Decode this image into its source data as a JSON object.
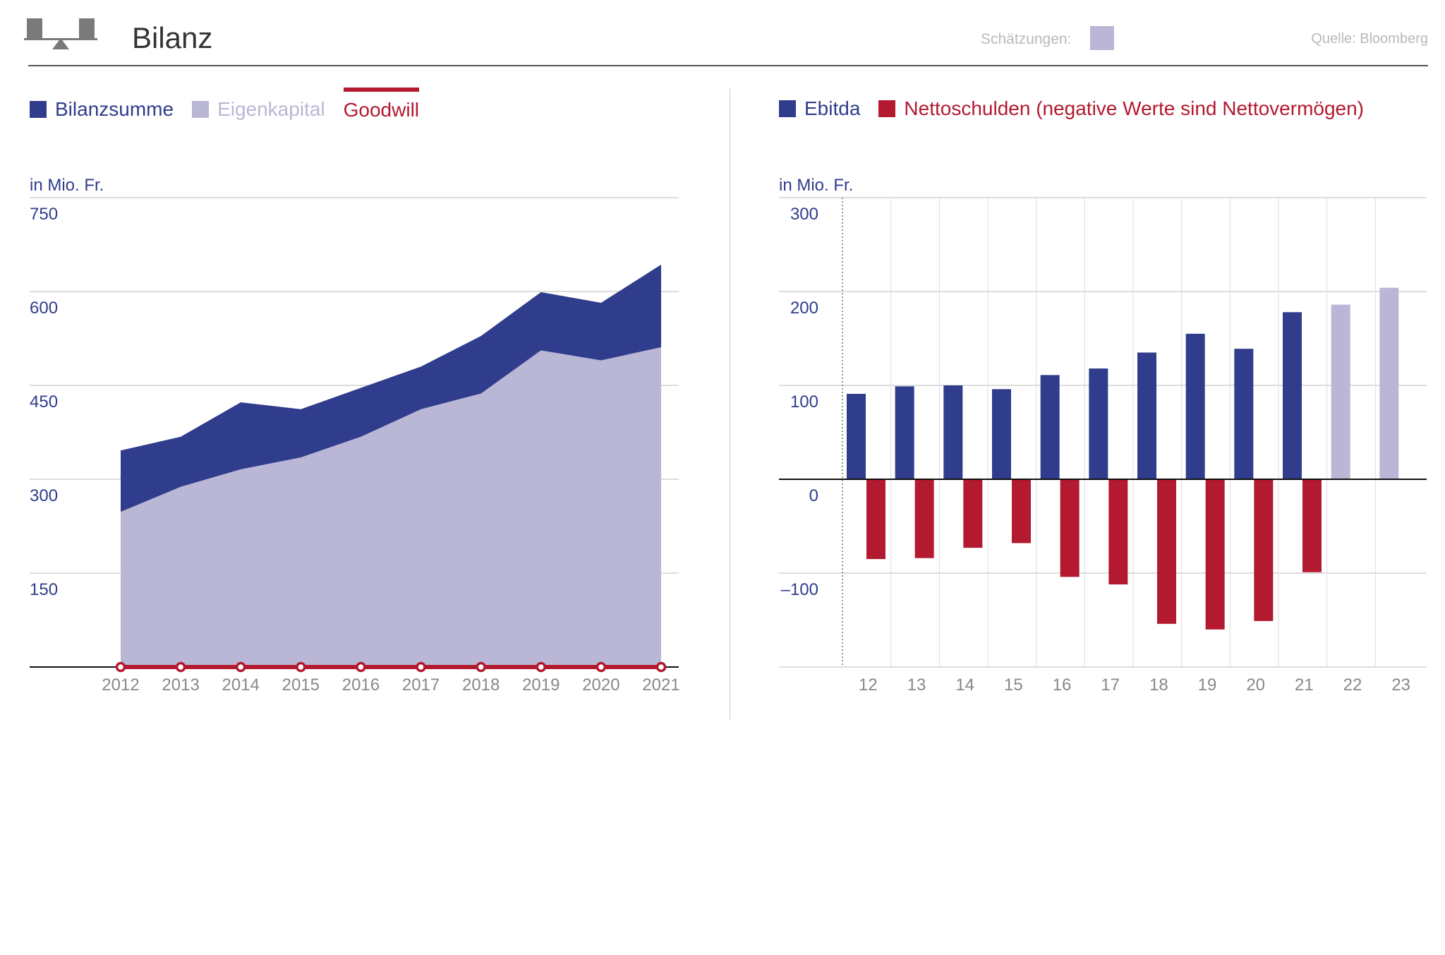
{
  "header": {
    "title": "Bilanz",
    "estimates_label": "Schätzungen:",
    "source": "Quelle: Bloomberg"
  },
  "colors": {
    "navy": "#303d8c",
    "lavender": "#b9b7d5",
    "red": "#b3192f",
    "axis_text": "#303d8c",
    "tick_text": "#888888"
  },
  "left_legend": [
    {
      "label": "Bilanzsumme",
      "color": "#303d8c",
      "kind": "swatch",
      "text_color": "#303d8c"
    },
    {
      "label": "Eigenkapital",
      "color": "#b9b7d5",
      "kind": "swatch",
      "text_color": "#b9b7d5"
    },
    {
      "label": "Goodwill",
      "color": "#b3192f",
      "kind": "line",
      "text_color": "#b3192f"
    }
  ],
  "right_legend": [
    {
      "label": "Ebitda",
      "color": "#303d8c",
      "kind": "swatch",
      "text_color": "#303d8c"
    },
    {
      "label": "Nettoschulden (negative Werte sind Nettovermögen)",
      "color": "#b3192f",
      "kind": "swatch",
      "text_color": "#b3192f"
    }
  ],
  "chart_data": [
    {
      "type": "area",
      "unit_label": "in Mio. Fr.",
      "x": [
        "2012",
        "2013",
        "2014",
        "2015",
        "2016",
        "2017",
        "2018",
        "2019",
        "2020",
        "2021"
      ],
      "yticks": [
        "750",
        "600",
        "450",
        "300",
        "150"
      ],
      "ylim": [
        0,
        750
      ],
      "grid": true,
      "series": [
        {
          "name": "Bilanzsumme",
          "values": [
            346,
            368,
            423,
            412,
            446,
            480,
            529,
            599,
            582,
            643
          ]
        },
        {
          "name": "Eigenkapital",
          "values": [
            248,
            288,
            316,
            335,
            368,
            412,
            437,
            506,
            490,
            511
          ]
        },
        {
          "name": "Goodwill",
          "values": [
            0,
            0,
            0,
            0,
            0,
            0,
            0,
            0,
            0,
            0
          ]
        }
      ]
    },
    {
      "type": "bar",
      "unit_label": "in Mio. Fr.",
      "categories": [
        "12",
        "13",
        "14",
        "15",
        "16",
        "17",
        "18",
        "19",
        "20",
        "21",
        "22",
        "23"
      ],
      "yticks": [
        "300",
        "200",
        "100",
        "0",
        "–100"
      ],
      "ylim": [
        -200,
        300
      ],
      "grid": true,
      "estimate_categories": [
        "22",
        "23"
      ],
      "series": [
        {
          "name": "Ebitda",
          "values": [
            91,
            99,
            100,
            96,
            111,
            118,
            135,
            155,
            139,
            178,
            186,
            204
          ]
        },
        {
          "name": "Nettoschulden (negative Werte sind Nettovermögen)",
          "values": [
            -85,
            -84,
            -73,
            -68,
            -104,
            -112,
            -154,
            -160,
            -151,
            -99,
            null,
            null
          ]
        }
      ]
    }
  ]
}
